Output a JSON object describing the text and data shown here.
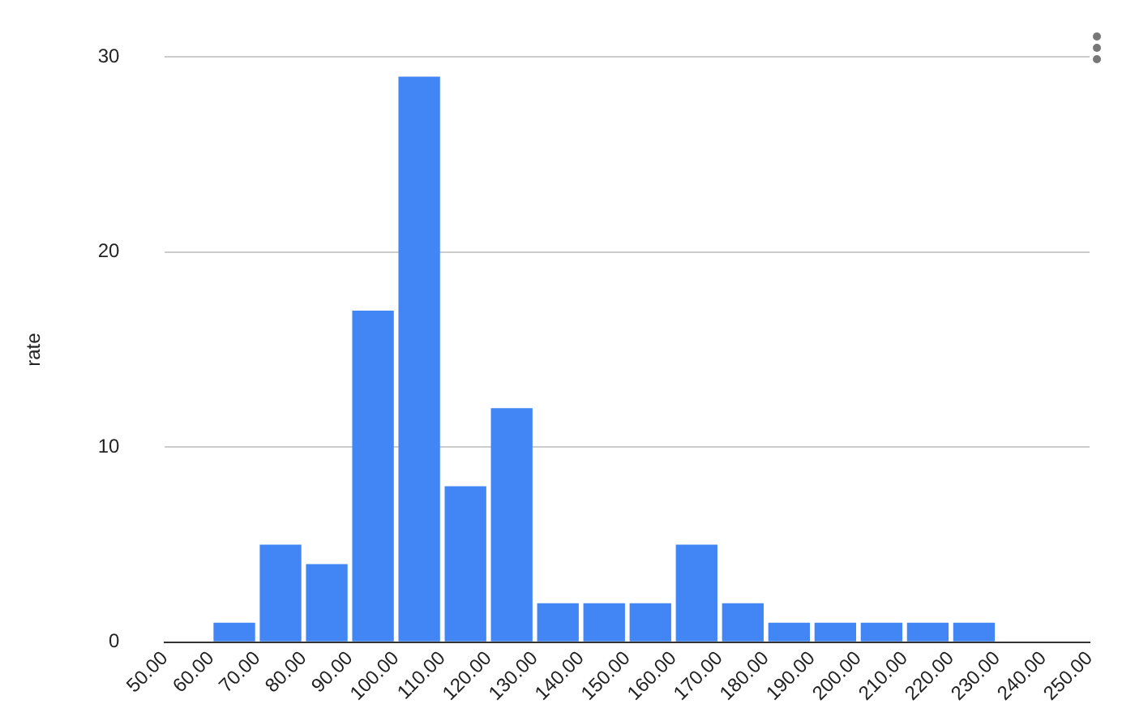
{
  "chart_data": {
    "type": "histogram",
    "ylabel": "rate",
    "bins": [
      50,
      60,
      70,
      80,
      90,
      100,
      110,
      120,
      130,
      140,
      150,
      160,
      170,
      180,
      190,
      200,
      210,
      220,
      230,
      240,
      250
    ],
    "values": [
      0,
      1,
      5,
      4,
      17,
      29,
      8,
      12,
      2,
      2,
      2,
      5,
      2,
      1,
      1,
      1,
      1,
      1,
      0,
      0
    ],
    "color": "#4285f4",
    "xlim": [
      50,
      250
    ],
    "xticks": [
      {
        "value": 50,
        "label": "50.00"
      },
      {
        "value": 60,
        "label": "60.00"
      },
      {
        "value": 70,
        "label": "70.00"
      },
      {
        "value": 80,
        "label": "80.00"
      },
      {
        "value": 90,
        "label": "90.00"
      },
      {
        "value": 100,
        "label": "100.00"
      },
      {
        "value": 110,
        "label": "110.00"
      },
      {
        "value": 120,
        "label": "120.00"
      },
      {
        "value": 130,
        "label": "130.00"
      },
      {
        "value": 140,
        "label": "140.00"
      },
      {
        "value": 150,
        "label": "150.00"
      },
      {
        "value": 160,
        "label": "160.00"
      },
      {
        "value": 170,
        "label": "170.00"
      },
      {
        "value": 180,
        "label": "180.00"
      },
      {
        "value": 190,
        "label": "190.00"
      },
      {
        "value": 200,
        "label": "200.00"
      },
      {
        "value": 210,
        "label": "210.00"
      },
      {
        "value": 220,
        "label": "220.00"
      },
      {
        "value": 230,
        "label": "230.00"
      },
      {
        "value": 240,
        "label": "240.00"
      },
      {
        "value": 250,
        "label": "250.00"
      }
    ],
    "ylim": [
      0,
      30
    ],
    "yticks": [
      0,
      10,
      20,
      30
    ],
    "grid": "y",
    "legend": false
  }
}
